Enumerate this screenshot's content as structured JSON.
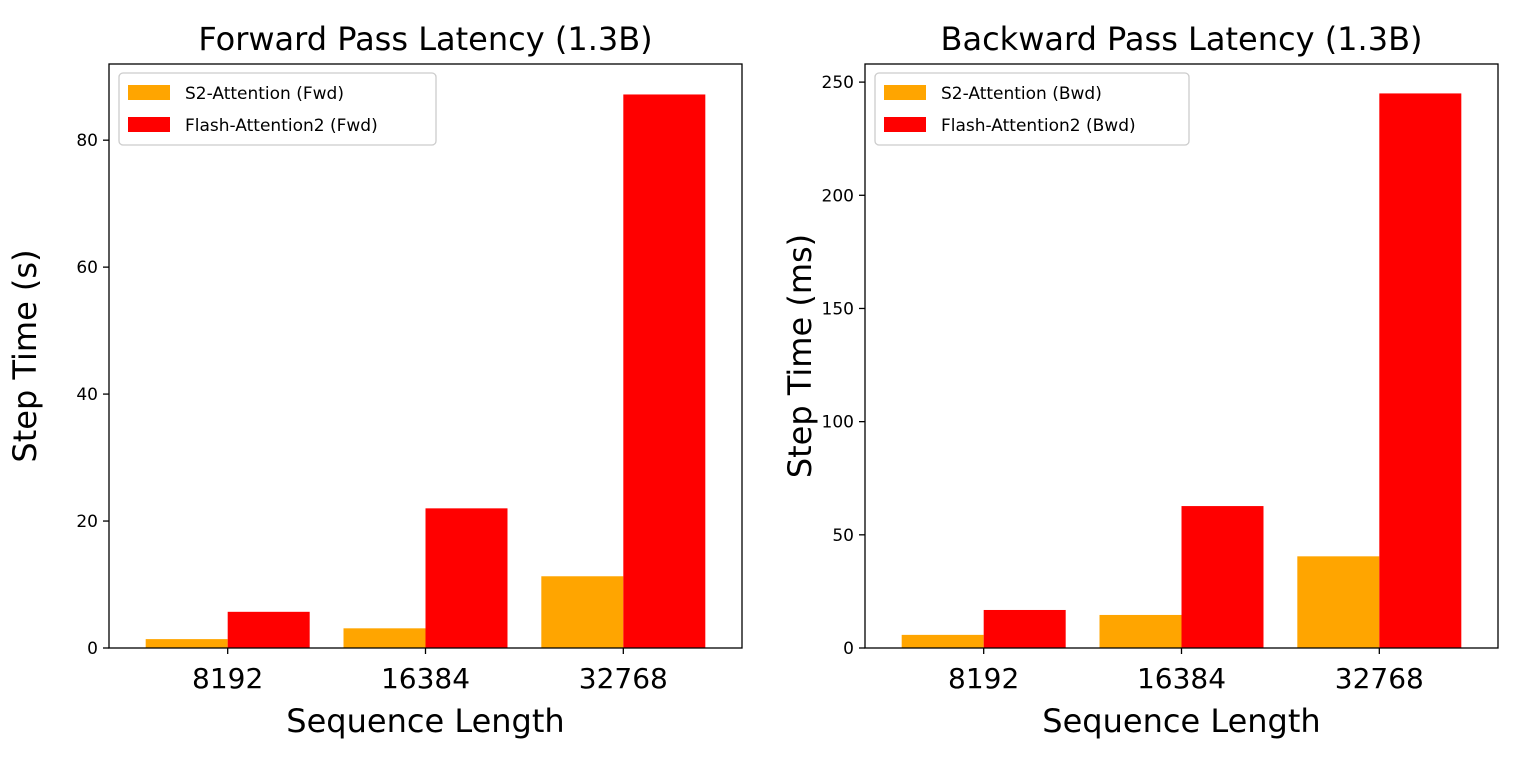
{
  "chart_data": [
    {
      "type": "bar",
      "title": "Forward Pass Latency (1.3B)",
      "xlabel": "Sequence Length",
      "ylabel": "Step Time (s)",
      "categories": [
        "8192",
        "16384",
        "32768"
      ],
      "ylim": [
        0,
        92
      ],
      "yticks": [
        0,
        20,
        40,
        60,
        80
      ],
      "legend_position": "top-left",
      "grid": false,
      "series": [
        {
          "name": "S2-Attention (Fwd)",
          "color": "#FFA500",
          "values": [
            1.4,
            3.1,
            11.3
          ]
        },
        {
          "name": "Flash-Attention2 (Fwd)",
          "color": "#FF0000",
          "values": [
            5.7,
            22.0,
            87.2
          ]
        }
      ]
    },
    {
      "type": "bar",
      "title": "Backward Pass Latency (1.3B)",
      "xlabel": "Sequence Length",
      "ylabel": "Step Time (ms)",
      "categories": [
        "8192",
        "16384",
        "32768"
      ],
      "ylim": [
        0,
        258
      ],
      "yticks": [
        0,
        50,
        100,
        150,
        200,
        250
      ],
      "legend_position": "top-left",
      "grid": false,
      "series": [
        {
          "name": "S2-Attention (Bwd)",
          "color": "#FFA500",
          "values": [
            5.8,
            14.6,
            40.5
          ]
        },
        {
          "name": "Flash-Attention2 (Bwd)",
          "color": "#FF0000",
          "values": [
            16.8,
            62.7,
            245.0
          ]
        }
      ]
    }
  ]
}
